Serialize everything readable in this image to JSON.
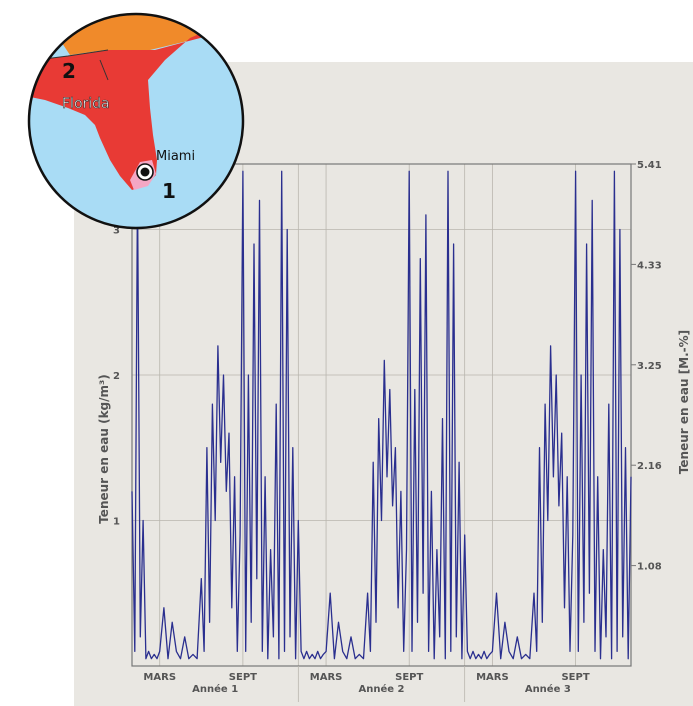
{
  "chart_data": {
    "type": "line",
    "ylabel_left": "Teneur en eau (kg/m³)",
    "ylabel_right": "Teneur en eau [M.-%]",
    "yticks_left": [
      "1",
      "2",
      "3"
    ],
    "yticks_right": [
      "1.08",
      "2.16",
      "3.25",
      "4.33",
      "5.41"
    ],
    "ylim_left": [
      0,
      3.45
    ],
    "xticks": [
      {
        "label": "MARS",
        "month": 2
      },
      {
        "label": "SEPT",
        "month": 8
      },
      {
        "label": "MARS",
        "month": 14
      },
      {
        "label": "SEPT",
        "month": 20
      },
      {
        "label": "MARS",
        "month": 26
      },
      {
        "label": "SEPT",
        "month": 32
      }
    ],
    "years": [
      "Année 1",
      "Année 2",
      "Année 3"
    ],
    "xlim_months": [
      0,
      36
    ],
    "grid": true,
    "line_color": "#2a2f8f",
    "series": [
      {
        "x": [
          0,
          0.2,
          0.4,
          0.6,
          0.8,
          1.0,
          1.2,
          1.4,
          1.6,
          1.8,
          2.0,
          2.3,
          2.6,
          2.9,
          3.2,
          3.5,
          3.8,
          4.1,
          4.4,
          4.7,
          5.0,
          5.2,
          5.4,
          5.6,
          5.8,
          6.0,
          6.2,
          6.4,
          6.6,
          6.8,
          7.0,
          7.2,
          7.4,
          7.6,
          7.8,
          8.0,
          8.2,
          8.4,
          8.6,
          8.8,
          9.0,
          9.2,
          9.4,
          9.6,
          9.8,
          10.0,
          10.2,
          10.4,
          10.6,
          10.8,
          11.0,
          11.2,
          11.4,
          11.6,
          11.8,
          12.0,
          12.2,
          12.4,
          12.6,
          12.8,
          13.0,
          13.2,
          13.4,
          13.6,
          13.8,
          14.0,
          14.3,
          14.6,
          14.9,
          15.2,
          15.5,
          15.8,
          16.1,
          16.4,
          16.7,
          17.0,
          17.2,
          17.4,
          17.6,
          17.8,
          18.0,
          18.2,
          18.4,
          18.6,
          18.8,
          19.0,
          19.2,
          19.4,
          19.6,
          19.8,
          20.0,
          20.2,
          20.4,
          20.6,
          20.8,
          21.0,
          21.2,
          21.4,
          21.6,
          21.8,
          22.0,
          22.2,
          22.4,
          22.6,
          22.8,
          23.0,
          23.2,
          23.4,
          23.6,
          23.8,
          24.0,
          24.2,
          24.4,
          24.6,
          24.8,
          25.0,
          25.2,
          25.4,
          25.6,
          25.8,
          26.0,
          26.3,
          26.6,
          26.9,
          27.2,
          27.5,
          27.8,
          28.1,
          28.4,
          28.7,
          29.0,
          29.2,
          29.4,
          29.6,
          29.8,
          30.0,
          30.2,
          30.4,
          30.6,
          30.8,
          31.0,
          31.2,
          31.4,
          31.6,
          31.8,
          32.0,
          32.2,
          32.4,
          32.6,
          32.8,
          33.0,
          33.2,
          33.4,
          33.6,
          33.8,
          34.0,
          34.2,
          34.4,
          34.6,
          34.8,
          35.0,
          35.2,
          35.4,
          35.6,
          35.8,
          36.0
        ],
        "y": [
          1.2,
          0.1,
          3.3,
          0.2,
          1.0,
          0.05,
          0.1,
          0.05,
          0.08,
          0.05,
          0.1,
          0.4,
          0.05,
          0.3,
          0.1,
          0.05,
          0.2,
          0.05,
          0.08,
          0.05,
          0.6,
          0.1,
          1.5,
          0.3,
          1.8,
          1.0,
          2.2,
          1.4,
          2.0,
          1.2,
          1.6,
          0.4,
          1.3,
          0.1,
          0.9,
          3.4,
          0.1,
          2.0,
          0.3,
          2.9,
          0.6,
          3.2,
          0.1,
          1.3,
          0.05,
          0.8,
          0.2,
          1.8,
          0.05,
          3.4,
          0.1,
          3.0,
          0.2,
          1.5,
          0.05,
          1.0,
          0.1,
          0.05,
          0.1,
          0.05,
          0.08,
          0.05,
          0.1,
          0.05,
          0.08,
          0.1,
          0.5,
          0.05,
          0.3,
          0.1,
          0.05,
          0.2,
          0.05,
          0.08,
          0.05,
          0.5,
          0.1,
          1.4,
          0.3,
          1.7,
          1.0,
          2.1,
          1.3,
          1.9,
          1.1,
          1.5,
          0.4,
          1.2,
          0.1,
          0.8,
          3.4,
          0.1,
          1.9,
          0.3,
          2.8,
          0.5,
          3.1,
          0.1,
          1.2,
          0.05,
          0.8,
          0.2,
          1.7,
          0.05,
          3.4,
          0.1,
          2.9,
          0.2,
          1.4,
          0.05,
          0.9,
          0.1,
          0.05,
          0.1,
          0.05,
          0.08,
          0.05,
          0.1,
          0.05,
          0.08,
          0.1,
          0.5,
          0.05,
          0.3,
          0.1,
          0.05,
          0.2,
          0.05,
          0.08,
          0.05,
          0.5,
          0.1,
          1.5,
          0.3,
          1.8,
          1.0,
          2.2,
          1.3,
          2.0,
          1.1,
          1.6,
          0.4,
          1.3,
          0.1,
          0.9,
          3.4,
          0.1,
          2.0,
          0.3,
          2.9,
          0.5,
          3.2,
          0.1,
          1.3,
          0.05,
          0.8,
          0.2,
          1.8,
          0.05,
          3.4,
          0.1,
          3.0,
          0.2,
          1.5,
          0.05,
          1.3
        ]
      }
    ]
  },
  "map": {
    "label_region": "Florida",
    "label_city": "Miami",
    "marker_city": "1",
    "marker_region": "2",
    "colors": {
      "water": "#a9dcf5",
      "region": "#e83a35",
      "north": "#f08a2a",
      "city_zone": "#f4a7c4"
    }
  }
}
